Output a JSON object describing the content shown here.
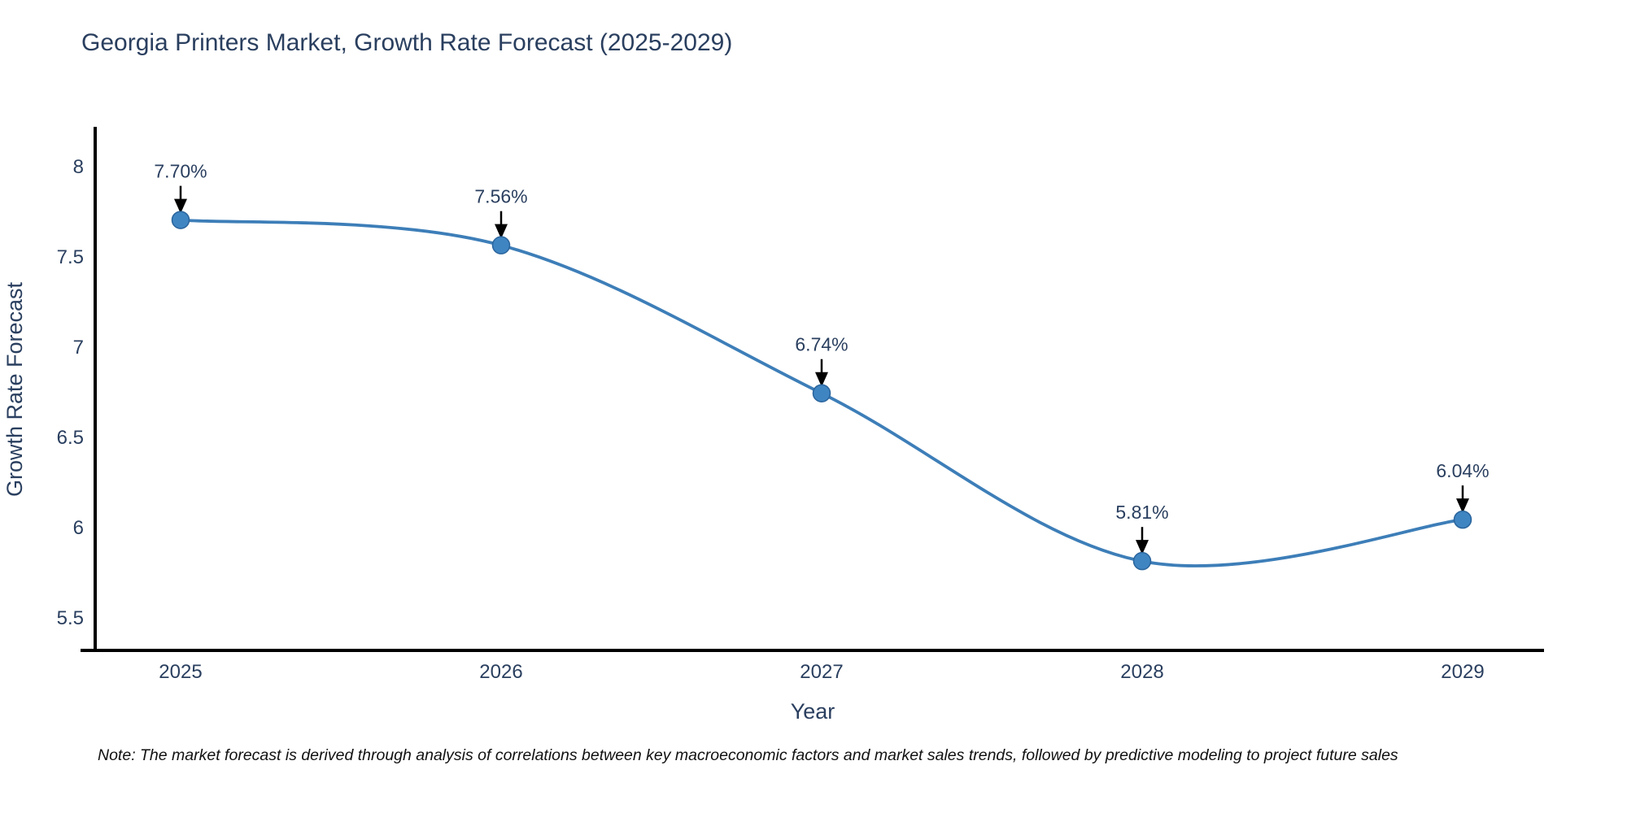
{
  "title": "Georgia Printers Market, Growth Rate Forecast (2025-2029)",
  "note": "Note: The market forecast is derived through analysis of correlations between key macroeconomic factors and market sales trends, followed by predictive modeling to project future sales",
  "chart_data": {
    "type": "line",
    "title": "Georgia Printers Market, Growth Rate Forecast (2025-2029)",
    "xlabel": "Year",
    "ylabel": "Growth Rate Forecast",
    "x": [
      2025,
      2026,
      2027,
      2028,
      2029
    ],
    "series": [
      {
        "name": "Growth Rate Forecast",
        "values": [
          7.7,
          7.56,
          6.74,
          5.81,
          6.04
        ],
        "point_labels": [
          "7.70%",
          "7.56%",
          "6.74%",
          "5.81%",
          "6.04%"
        ]
      }
    ],
    "xtick_labels": [
      "2025",
      "2026",
      "2027",
      "2028",
      "2029"
    ],
    "ytick_values": [
      8,
      7.5,
      7,
      6.5,
      6,
      5.5
    ],
    "ytick_labels": [
      "8",
      "7.5",
      "7",
      "6.5",
      "6",
      "5.5"
    ],
    "ylim": [
      5.3,
      8.2
    ],
    "grid": false,
    "legend_position": "none",
    "line_shape": "spline",
    "annotations_have_arrows": true,
    "colors": {
      "line": "#3d7eb8",
      "marker_fill": "#3f85c2",
      "marker_edge": "#2a649c",
      "arrow": "#000000",
      "text": "#2a3f5f",
      "axis_line": "#000000",
      "note_text": "#111111"
    }
  }
}
